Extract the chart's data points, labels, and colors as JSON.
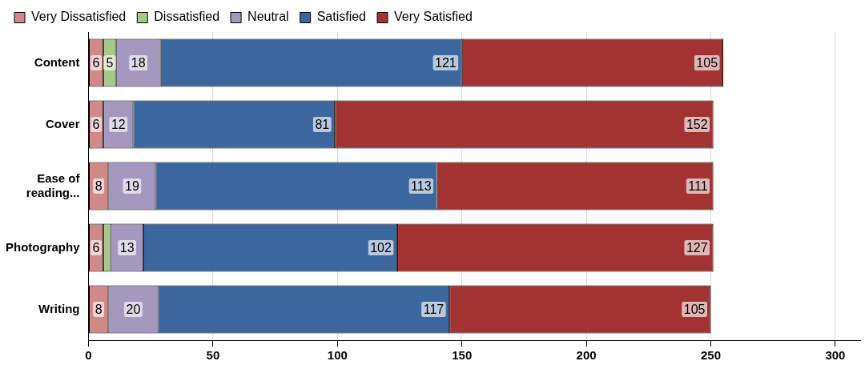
{
  "chart_data": {
    "type": "bar",
    "orientation": "horizontal",
    "stacked": true,
    "categories": [
      "Content",
      "Cover",
      "Ease of reading...",
      "Photography",
      "Writing"
    ],
    "series": [
      {
        "name": "Very Dissatisfied",
        "color": "#d08888",
        "values": [
          6,
          6,
          8,
          6,
          8
        ],
        "value_labels": [
          "6",
          "6",
          "8",
          "6",
          "8"
        ]
      },
      {
        "name": "Dissatisfied",
        "color": "#a6c98a",
        "values": [
          5,
          0,
          0,
          3,
          0
        ],
        "value_labels": [
          "5",
          null,
          null,
          null,
          null
        ]
      },
      {
        "name": "Neutral",
        "color": "#a598bf",
        "values": [
          18,
          12,
          19,
          13,
          20
        ],
        "value_labels": [
          "18",
          "12",
          "19",
          "13",
          "20"
        ]
      },
      {
        "name": "Satisfied",
        "color": "#3b679e",
        "values": [
          121,
          81,
          113,
          102,
          117
        ],
        "value_labels": [
          "121",
          "81",
          "113",
          "102",
          "117"
        ]
      },
      {
        "name": "Very Satisfied",
        "color": "#a33232",
        "values": [
          105,
          152,
          111,
          127,
          105
        ],
        "value_labels": [
          "105",
          "152",
          "111",
          "127",
          "105"
        ]
      }
    ],
    "xlim": [
      0,
      310
    ],
    "xticks": [
      0,
      50,
      100,
      150,
      200,
      250,
      300
    ],
    "grid": "x",
    "legend": "top left"
  }
}
